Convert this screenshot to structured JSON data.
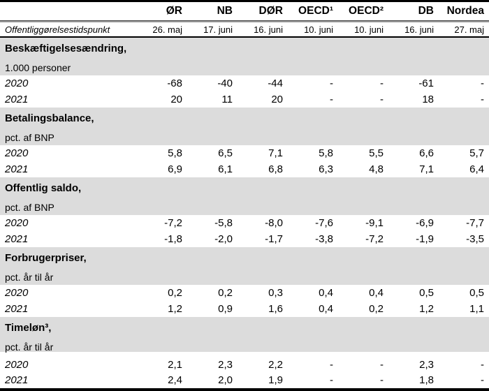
{
  "chart_data": {
    "type": "table",
    "columns": [
      "ØR",
      "NB",
      "DØR",
      "OECD¹",
      "OECD²",
      "DB",
      "Nordea"
    ],
    "publication": {
      "label": "Offentliggørelsestidspunkt",
      "dates": [
        "26. maj",
        "17. juni",
        "16. juni",
        "10. juni",
        "10. juni",
        "16. juni",
        "27. maj"
      ]
    },
    "sections": [
      {
        "title": "Beskæftigelsesændring,",
        "subtitle": "1.000 personer",
        "rows": [
          {
            "year": "2020",
            "values": [
              "-68",
              "-40",
              "-44",
              "-",
              "-",
              "-61",
              "-"
            ]
          },
          {
            "year": "2021",
            "values": [
              "20",
              "11",
              "20",
              "-",
              "-",
              "18",
              "-"
            ]
          }
        ]
      },
      {
        "title": "Betalingsbalance,",
        "subtitle": "pct. af BNP",
        "rows": [
          {
            "year": "2020",
            "values": [
              "5,8",
              "6,5",
              "7,1",
              "5,8",
              "5,5",
              "6,6",
              "5,7"
            ]
          },
          {
            "year": "2021",
            "values": [
              "6,9",
              "6,1",
              "6,8",
              "6,3",
              "4,8",
              "7,1",
              "6,4"
            ]
          }
        ]
      },
      {
        "title": "Offentlig saldo,",
        "subtitle": "pct. af BNP",
        "rows": [
          {
            "year": "2020",
            "values": [
              "-7,2",
              "-5,8",
              "-8,0",
              "-7,6",
              "-9,1",
              "-6,9",
              "-7,7"
            ]
          },
          {
            "year": "2021",
            "values": [
              "-1,8",
              "-2,0",
              "-1,7",
              "-3,8",
              "-7,2",
              "-1,9",
              "-3,5"
            ]
          }
        ]
      },
      {
        "title": "Forbrugerpriser,",
        "subtitle": "pct. år til år",
        "rows": [
          {
            "year": "2020",
            "values": [
              "0,2",
              "0,2",
              "0,3",
              "0,4",
              "0,4",
              "0,5",
              "0,5"
            ]
          },
          {
            "year": "2021",
            "values": [
              "1,2",
              "0,9",
              "1,6",
              "0,4",
              "0,2",
              "1,2",
              "1,1"
            ]
          }
        ]
      },
      {
        "title": "Timeløn³,",
        "subtitle": "pct. år til år",
        "rows": [
          {
            "year": "2020",
            "values": [
              "2,1",
              "2,3",
              "2,2",
              "-",
              "-",
              "2,3",
              "-"
            ]
          },
          {
            "year": "2021",
            "values": [
              "2,4",
              "2,0",
              "1,9",
              "-",
              "-",
              "1,8",
              "-"
            ]
          }
        ]
      }
    ]
  },
  "colors": {
    "section_background": "#dcdcdc",
    "header_separator": "#979797",
    "table_border": "#000000"
  }
}
